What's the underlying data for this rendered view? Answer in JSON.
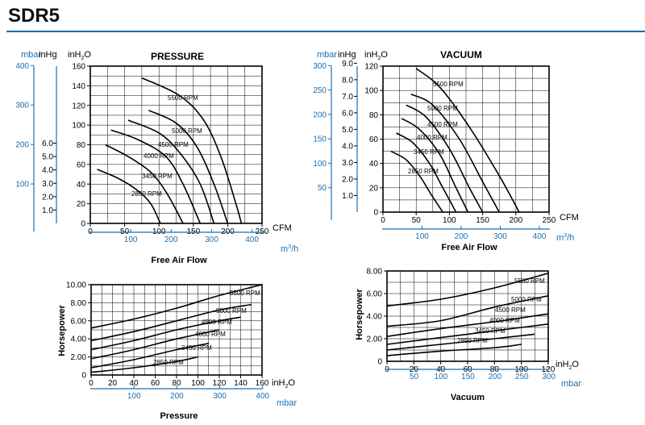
{
  "page": {
    "title": "SDR5",
    "accent_color": "#1b6fb0",
    "grid_color": "#000000"
  },
  "chart_data": [
    {
      "type": "line",
      "title": "PRESSURE",
      "x_unit": "CFM",
      "x2_unit": "m3/h",
      "x2_unit_base": "m",
      "x2_unit_sup": "3",
      "x2_unit_tail": "/h",
      "xlabel": "Free Air Flow",
      "xlim": [
        0,
        250
      ],
      "ylim": [
        0,
        160
      ],
      "x_ticks": [
        0,
        50,
        100,
        150,
        200,
        250
      ],
      "x2_ticks": [
        100,
        200,
        300,
        400
      ],
      "y_unit": "inH2O",
      "y_unit_base": "inH",
      "y_unit_sub": "2",
      "y_unit_tail": "O",
      "y_ticks": [
        0,
        20,
        40,
        60,
        80,
        100,
        120,
        140,
        160
      ],
      "y2_unit": "inHg",
      "y2_ticks": [
        [
          "1.0",
          13.6
        ],
        [
          "2.0",
          27.2
        ],
        [
          "3.0",
          40.8
        ],
        [
          "4.0",
          54.4
        ],
        [
          "5.0",
          68.0
        ],
        [
          "6.0",
          81.6
        ]
      ],
      "y3_unit": "mbar",
      "y3_ticks": [
        100,
        200,
        300,
        400
      ],
      "series": [
        {
          "name": "2850 RPM",
          "points": [
            [
              10,
              55
            ],
            [
              40,
              46
            ],
            [
              68,
              34
            ],
            [
              88,
              20
            ],
            [
              102,
              0
            ]
          ]
        },
        {
          "name": "3450 RPM",
          "points": [
            [
              22,
              80
            ],
            [
              55,
              68
            ],
            [
              88,
              52
            ],
            [
              112,
              30
            ],
            [
              135,
              0
            ]
          ]
        },
        {
          "name": "4000 RPM",
          "points": [
            [
              30,
              95
            ],
            [
              70,
              85
            ],
            [
              110,
              68
            ],
            [
              135,
              40
            ],
            [
              160,
              0
            ]
          ]
        },
        {
          "name": "4500 RPM",
          "points": [
            [
              55,
              105
            ],
            [
              100,
              92
            ],
            [
              130,
              72
            ],
            [
              160,
              40
            ],
            [
              180,
              0
            ]
          ]
        },
        {
          "name": "5000 RPM",
          "points": [
            [
              85,
              115
            ],
            [
              125,
              102
            ],
            [
              155,
              78
            ],
            [
              180,
              40
            ],
            [
              200,
              0
            ]
          ]
        },
        {
          "name": "5500 RPM",
          "points": [
            [
              75,
              148
            ],
            [
              130,
              130
            ],
            [
              165,
              105
            ],
            [
              190,
              68
            ],
            [
              212,
              20
            ],
            [
              220,
              0
            ]
          ]
        }
      ]
    },
    {
      "type": "line",
      "title": "VACUUM",
      "x_unit": "CFM",
      "x2_unit": "m3/h",
      "x2_unit_base": "m",
      "x2_unit_sup": "3",
      "x2_unit_tail": "/h",
      "xlabel": "Free Air Flow",
      "xlim": [
        0,
        250
      ],
      "ylim": [
        0,
        120
      ],
      "x_ticks": [
        0,
        50,
        100,
        150,
        200,
        250
      ],
      "x2_ticks": [
        100,
        200,
        300,
        400
      ],
      "y_unit": "inH2O",
      "y_unit_base": "inH",
      "y_unit_sub": "2",
      "y_unit_tail": "O",
      "y_ticks": [
        0,
        20,
        40,
        60,
        80,
        100,
        120
      ],
      "y2_unit": "inHg",
      "y2_ticks": [
        [
          "1.0",
          13.6
        ],
        [
          "2.0",
          27.2
        ],
        [
          "3.0",
          40.8
        ],
        [
          "4.0",
          54.4
        ],
        [
          "5.0",
          68.0
        ],
        [
          "6.0",
          81.6
        ],
        [
          "7.0",
          95.2
        ],
        [
          "8.0",
          108.8
        ],
        [
          "9.0",
          122.4
        ]
      ],
      "y3_unit": "mbar",
      "y3_ticks": [
        50,
        100,
        150,
        200,
        250,
        300
      ],
      "series": [
        {
          "name": "2850 RPM",
          "points": [
            [
              12,
              50
            ],
            [
              35,
              43
            ],
            [
              55,
              30
            ],
            [
              72,
              15
            ],
            [
              90,
              0
            ]
          ]
        },
        {
          "name": "3450 RPM",
          "points": [
            [
              20,
              65
            ],
            [
              45,
              57
            ],
            [
              70,
              40
            ],
            [
              90,
              20
            ],
            [
              110,
              0
            ]
          ]
        },
        {
          "name": "4000 RPM",
          "points": [
            [
              28,
              77
            ],
            [
              55,
              68
            ],
            [
              85,
              48
            ],
            [
              110,
              20
            ],
            [
              128,
              0
            ]
          ]
        },
        {
          "name": "4500 RPM",
          "points": [
            [
              35,
              88
            ],
            [
              65,
              78
            ],
            [
              100,
              52
            ],
            [
              130,
              20
            ],
            [
              150,
              0
            ]
          ]
        },
        {
          "name": "5000 RPM",
          "points": [
            [
              42,
              97
            ],
            [
              75,
              88
            ],
            [
              115,
              60
            ],
            [
              150,
              25
            ],
            [
              175,
              0
            ]
          ]
        },
        {
          "name": "5500 RPM",
          "points": [
            [
              50,
              118
            ],
            [
              85,
              103
            ],
            [
              130,
              70
            ],
            [
              175,
              30
            ],
            [
              205,
              0
            ]
          ]
        }
      ]
    },
    {
      "type": "line",
      "title": "",
      "ylabel": "Horsepower",
      "xlabel": "Pressure",
      "x_unit": "inH2O",
      "x_unit_base": "inH",
      "x_unit_sub": "2",
      "x_unit_tail": "O",
      "x2_unit": "mbar",
      "xlim": [
        0,
        160
      ],
      "ylim": [
        0,
        10
      ],
      "x_ticks": [
        0,
        20,
        40,
        60,
        80,
        100,
        120,
        140,
        160
      ],
      "x2_ticks": [
        100,
        200,
        300,
        400
      ],
      "y_ticks": [
        "2.00",
        "4.00",
        "6.00",
        "8.00",
        "10.00"
      ],
      "y_zero_label": "0",
      "series": [
        {
          "name": "2850 RPM",
          "points": [
            [
              0,
              0.3
            ],
            [
              40,
              0.8
            ],
            [
              80,
              1.5
            ],
            [
              100,
              2.0
            ]
          ]
        },
        {
          "name": "3450 RPM",
          "points": [
            [
              0,
              0.8
            ],
            [
              40,
              1.7
            ],
            [
              80,
              2.8
            ],
            [
              110,
              3.5
            ]
          ]
        },
        {
          "name": "4000 RPM",
          "points": [
            [
              0,
              1.8
            ],
            [
              40,
              2.8
            ],
            [
              80,
              4.0
            ],
            [
              120,
              5.0
            ]
          ]
        },
        {
          "name": "4500 RPM",
          "points": [
            [
              0,
              2.8
            ],
            [
              40,
              3.8
            ],
            [
              80,
              5.0
            ],
            [
              120,
              6.0
            ],
            [
              140,
              6.4
            ]
          ]
        },
        {
          "name": "5000 RPM",
          "points": [
            [
              0,
              3.8
            ],
            [
              40,
              4.8
            ],
            [
              80,
              6.0
            ],
            [
              120,
              7.2
            ],
            [
              150,
              7.8
            ]
          ]
        },
        {
          "name": "5500 RPM",
          "points": [
            [
              0,
              5.2
            ],
            [
              40,
              6.2
            ],
            [
              80,
              7.4
            ],
            [
              120,
              8.8
            ],
            [
              160,
              10.0
            ]
          ]
        }
      ]
    },
    {
      "type": "line",
      "title": "",
      "ylabel": "Horsepower",
      "xlabel": "Vacuum",
      "x_unit": "inH2O",
      "x_unit_base": "inH",
      "x_unit_sub": "2",
      "x_unit_tail": "O",
      "x2_unit": "mbar",
      "xlim": [
        0,
        120
      ],
      "ylim": [
        0,
        8
      ],
      "x_ticks": [
        0,
        20,
        40,
        60,
        80,
        100,
        120
      ],
      "x2_ticks": [
        50,
        100,
        150,
        200,
        250,
        300
      ],
      "y_ticks": [
        "2.00",
        "4.00",
        "6.00",
        "8.00"
      ],
      "y_zero_label": "0",
      "series": [
        {
          "name": "2850 RPM",
          "points": [
            [
              0,
              0.5
            ],
            [
              40,
              0.9
            ],
            [
              80,
              1.2
            ],
            [
              100,
              1.5
            ]
          ]
        },
        {
          "name": "3450 RPM",
          "points": [
            [
              0,
              1.0
            ],
            [
              40,
              1.5
            ],
            [
              80,
              2.0
            ],
            [
              110,
              2.4
            ]
          ]
        },
        {
          "name": "4000 RPM",
          "points": [
            [
              0,
              1.5
            ],
            [
              40,
              2.1
            ],
            [
              80,
              2.7
            ],
            [
              120,
              3.3
            ]
          ]
        },
        {
          "name": "4500 RPM",
          "points": [
            [
              0,
              2.2
            ],
            [
              40,
              2.9
            ],
            [
              80,
              3.5
            ],
            [
              120,
              4.2
            ]
          ]
        },
        {
          "name": "5000 RPM",
          "points": [
            [
              0,
              3.1
            ],
            [
              40,
              3.6
            ],
            [
              80,
              4.8
            ],
            [
              120,
              5.8
            ]
          ]
        },
        {
          "name": "5500 RPM",
          "points": [
            [
              0,
              4.9
            ],
            [
              40,
              5.5
            ],
            [
              80,
              6.5
            ],
            [
              120,
              7.8
            ]
          ]
        }
      ]
    }
  ]
}
